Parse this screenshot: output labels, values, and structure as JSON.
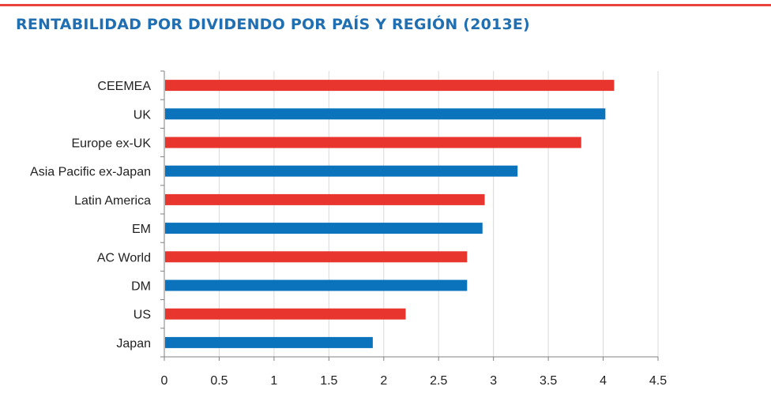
{
  "header": {
    "title": "RENTABILIDAD POR DIVIDENDO POR PAÍS Y REGIÓN (2013E)"
  },
  "colors": {
    "rule": "#e8423b",
    "title": "#1f6fb2",
    "red_bar": "#e8352e",
    "blue_bar": "#0a73bb",
    "grid": "#d9d9d9",
    "axis": "#808080"
  },
  "chart_data": {
    "type": "bar",
    "orientation": "horizontal",
    "title": "RENTABILIDAD POR DIVIDENDO POR PAÍS Y REGIÓN (2013E)",
    "xlabel": "",
    "ylabel": "",
    "xlim": [
      0,
      4.5
    ],
    "xticks": [
      "0",
      "0.5",
      "1",
      "1.5",
      "2",
      "2.5",
      "3",
      "3.5",
      "4",
      "4.5"
    ],
    "grid": true,
    "legend": "none",
    "categories": [
      "CEEMEA",
      "UK",
      "Europe ex-UK",
      "Asia Pacific ex-Japan",
      "Latin America",
      "EM",
      "AC World",
      "DM",
      "US",
      "Japan"
    ],
    "values": [
      4.1,
      4.02,
      3.8,
      3.22,
      2.92,
      2.9,
      2.76,
      2.76,
      2.2,
      1.9
    ],
    "bar_colors": [
      "red",
      "blue",
      "red",
      "blue",
      "red",
      "blue",
      "red",
      "blue",
      "red",
      "blue"
    ]
  }
}
